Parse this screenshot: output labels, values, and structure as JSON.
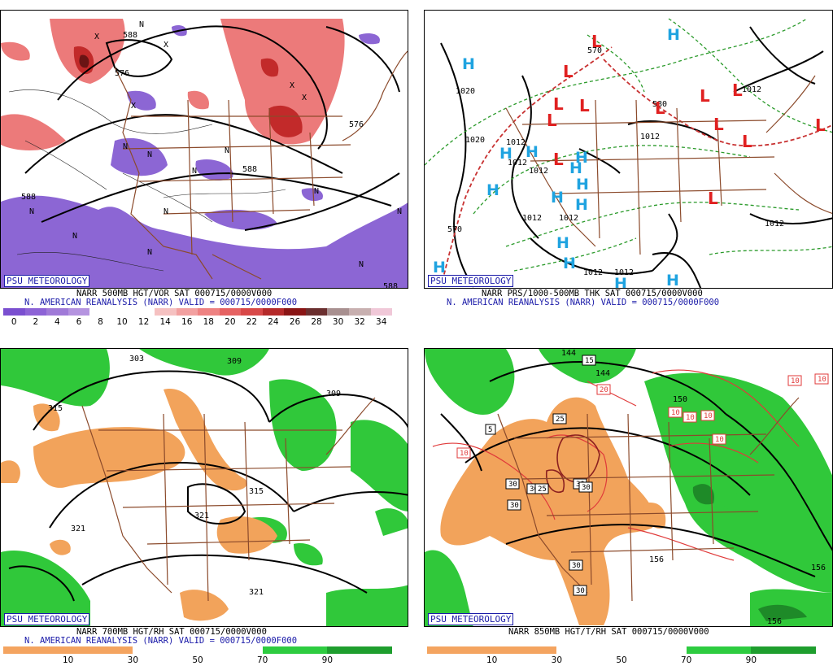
{
  "panels": {
    "p1": {
      "badge": "PSU METEOROLOGY",
      "line1": "NARR 500MB HGT/VOR SAT 000715/0000V000",
      "line2": "N. AMERICAN REANALYSIS (NARR) VALID = 000715/0000F000",
      "labels": [
        "588",
        "576",
        "576",
        "588",
        "588",
        "588"
      ],
      "markers": [
        "N",
        "N",
        "N",
        "N",
        "N",
        "N",
        "N",
        "N",
        "N",
        "N",
        "N",
        "N",
        "X",
        "X",
        "X",
        "X",
        "X"
      ],
      "colorbar": {
        "ticks": [
          "0",
          "2",
          "4",
          "6",
          "8",
          "10",
          "12",
          "14",
          "16",
          "18",
          "20",
          "22",
          "24",
          "26",
          "28",
          "30",
          "32",
          "34"
        ],
        "colors": [
          "#7a4fd0",
          "#8d63d6",
          "#a07ad8",
          "#b594e0",
          "#fff",
          "#fff",
          "#fff",
          "#f5c1c1",
          "#f2a0a0",
          "#ee8282",
          "#e66262",
          "#d84848",
          "#b52a2a",
          "#8a1515",
          "#6a2f2f",
          "#a89090",
          "#c8b0b0",
          "#f0c8d8"
        ]
      }
    },
    "p2": {
      "badge": "PSU METEOROLOGY",
      "line1": "NARR PRS/1000-500MB THK SAT 000715/0000V000",
      "line2": "N. AMERICAN REANALYSIS (NARR) VALID = 000715/0000F000",
      "labels": [
        "1020",
        "1020",
        "1012",
        "1012",
        "1012",
        "1012",
        "1012",
        "1012",
        "1012",
        "1012",
        "1012",
        "1012",
        "570",
        "580",
        "570"
      ],
      "highs": [
        "H",
        "H",
        "H",
        "H",
        "H",
        "H",
        "H",
        "H",
        "H",
        "H",
        "H",
        "H",
        "H",
        "H",
        "H"
      ],
      "lows": [
        "L",
        "L",
        "L",
        "L",
        "L",
        "L",
        "L",
        "L",
        "L",
        "L",
        "L",
        "L",
        "L"
      ]
    },
    "p3": {
      "badge": "PSU METEOROLOGY",
      "line1": "NARR 700MB HGT/RH SAT 000715/0000V000",
      "line2": "N. AMERICAN REANALYSIS (NARR) VALID = 000715/0000F000",
      "labels": [
        "303",
        "309",
        "309",
        "315",
        "315",
        "321",
        "321",
        "321"
      ],
      "colorbar": {
        "ticks": [
          "10",
          "30",
          "50",
          "70",
          "90"
        ],
        "colors": [
          "#f4a460",
          "#f4a460",
          "#fff",
          "#fff",
          "#2ecc40",
          "#1e9e2e"
        ]
      }
    },
    "p4": {
      "badge": "PSU METEOROLOGY",
      "line1": "NARR 850MB HGT/T/RH SAT 000715/0000V000",
      "line2": "",
      "labels": [
        "144",
        "144",
        "150",
        "156",
        "156",
        "156"
      ],
      "boxlabels": [
        "15",
        "20",
        "25",
        "5",
        "10",
        "10",
        "10",
        "10",
        "10",
        "10",
        "30",
        "30",
        "30",
        "25",
        "30",
        "30",
        "30",
        "30",
        "10"
      ],
      "colorbar": {
        "ticks": [
          "10",
          "30",
          "50",
          "70",
          "90"
        ],
        "colors": [
          "#f4a460",
          "#f4a460",
          "#fff",
          "#fff",
          "#2ecc40",
          "#1e9e2e"
        ]
      }
    }
  }
}
